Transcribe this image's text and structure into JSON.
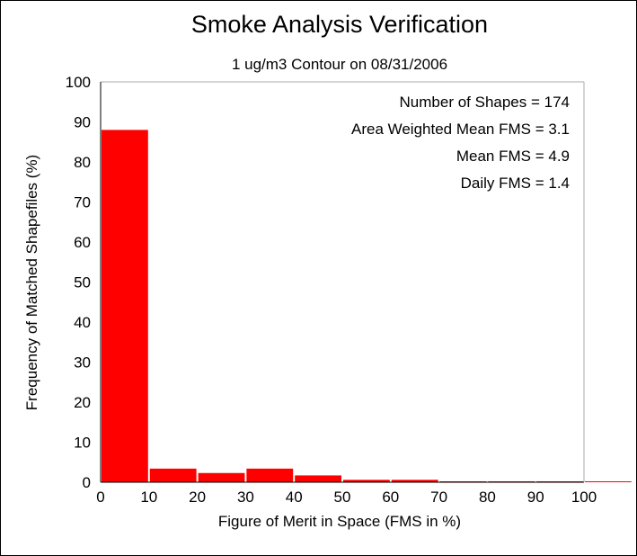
{
  "chart_data": {
    "type": "bar",
    "title": "Smoke Analysis Verification",
    "subtitle": "1 ug/m3 Contour on 08/31/2006",
    "xlabel": "Figure of Merit in Space (FMS in %)",
    "ylabel": "Frequency of Matched Shapefiles (%)",
    "xlim": [
      0,
      110
    ],
    "ylim": [
      0,
      100
    ],
    "x_ticks": [
      "0",
      "10",
      "20",
      "30",
      "40",
      "50",
      "60",
      "70",
      "80",
      "90",
      "100"
    ],
    "y_ticks": [
      "0",
      "10",
      "20",
      "30",
      "40",
      "50",
      "60",
      "70",
      "80",
      "90",
      "100"
    ],
    "bins": [
      {
        "from": 0,
        "to": 10,
        "value": 88.0
      },
      {
        "from": 10,
        "to": 20,
        "value": 3.4
      },
      {
        "from": 20,
        "to": 30,
        "value": 2.3
      },
      {
        "from": 30,
        "to": 40,
        "value": 3.4
      },
      {
        "from": 40,
        "to": 50,
        "value": 1.7
      },
      {
        "from": 50,
        "to": 60,
        "value": 0.6
      },
      {
        "from": 60,
        "to": 70,
        "value": 0.6
      },
      {
        "from": 70,
        "to": 80,
        "value": 0.0
      },
      {
        "from": 80,
        "to": 90,
        "value": 0.0
      },
      {
        "from": 90,
        "to": 100,
        "value": 0.0
      },
      {
        "from": 100,
        "to": 110,
        "value": 0.0
      }
    ],
    "bar_color": "#ff0000",
    "grid": false,
    "annotations": [
      "Number of Shapes = 174",
      "Area Weighted Mean FMS = 3.1",
      "Mean FMS = 4.9",
      "Daily FMS = 1.4"
    ],
    "annotation_placement": "top-right"
  }
}
